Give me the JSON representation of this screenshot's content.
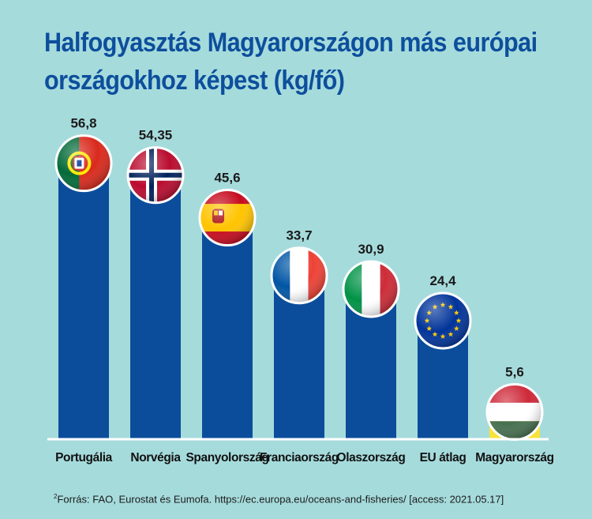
{
  "chart_data": {
    "type": "bar",
    "title_lines": [
      "Halfogyasztás Magyarországon más európai",
      "országokhoz képest (kg/fő)"
    ],
    "categories": [
      "Portugália",
      "Norvégia",
      "Spanyolország",
      "Franciaország",
      "Olaszország",
      "EU átlag",
      "Magyarország"
    ],
    "values": [
      56.8,
      54.35,
      45.6,
      33.7,
      30.9,
      24.4,
      5.6
    ],
    "value_labels": [
      "56,8",
      "54,35",
      "45,6",
      "33,7",
      "30,9",
      "24,4",
      "5,6"
    ],
    "flags": [
      "portugal-flag",
      "norway-flag",
      "spain-flag",
      "france-flag",
      "italy-flag",
      "eu-flag",
      "hungary-flag"
    ],
    "bar_colors": [
      "#0b4d9b",
      "#0b4d9b",
      "#0b4d9b",
      "#0b4d9b",
      "#0b4d9b",
      "#0b4d9b",
      "#f7e33a"
    ],
    "xlabel": "",
    "ylabel": "",
    "grid": false,
    "legend": "none"
  },
  "source": {
    "marker": "2",
    "text": "Forrás: FAO, Eurostat és Eumofa.  https://ec.europa.eu/oceans-and-fisheries/ [access: 2021.05.17]"
  },
  "colors": {
    "background": "#a6dbdc",
    "title": "#0d4f9c",
    "bar": "#0b4d9b",
    "highlight_bar": "#f7e33a"
  }
}
